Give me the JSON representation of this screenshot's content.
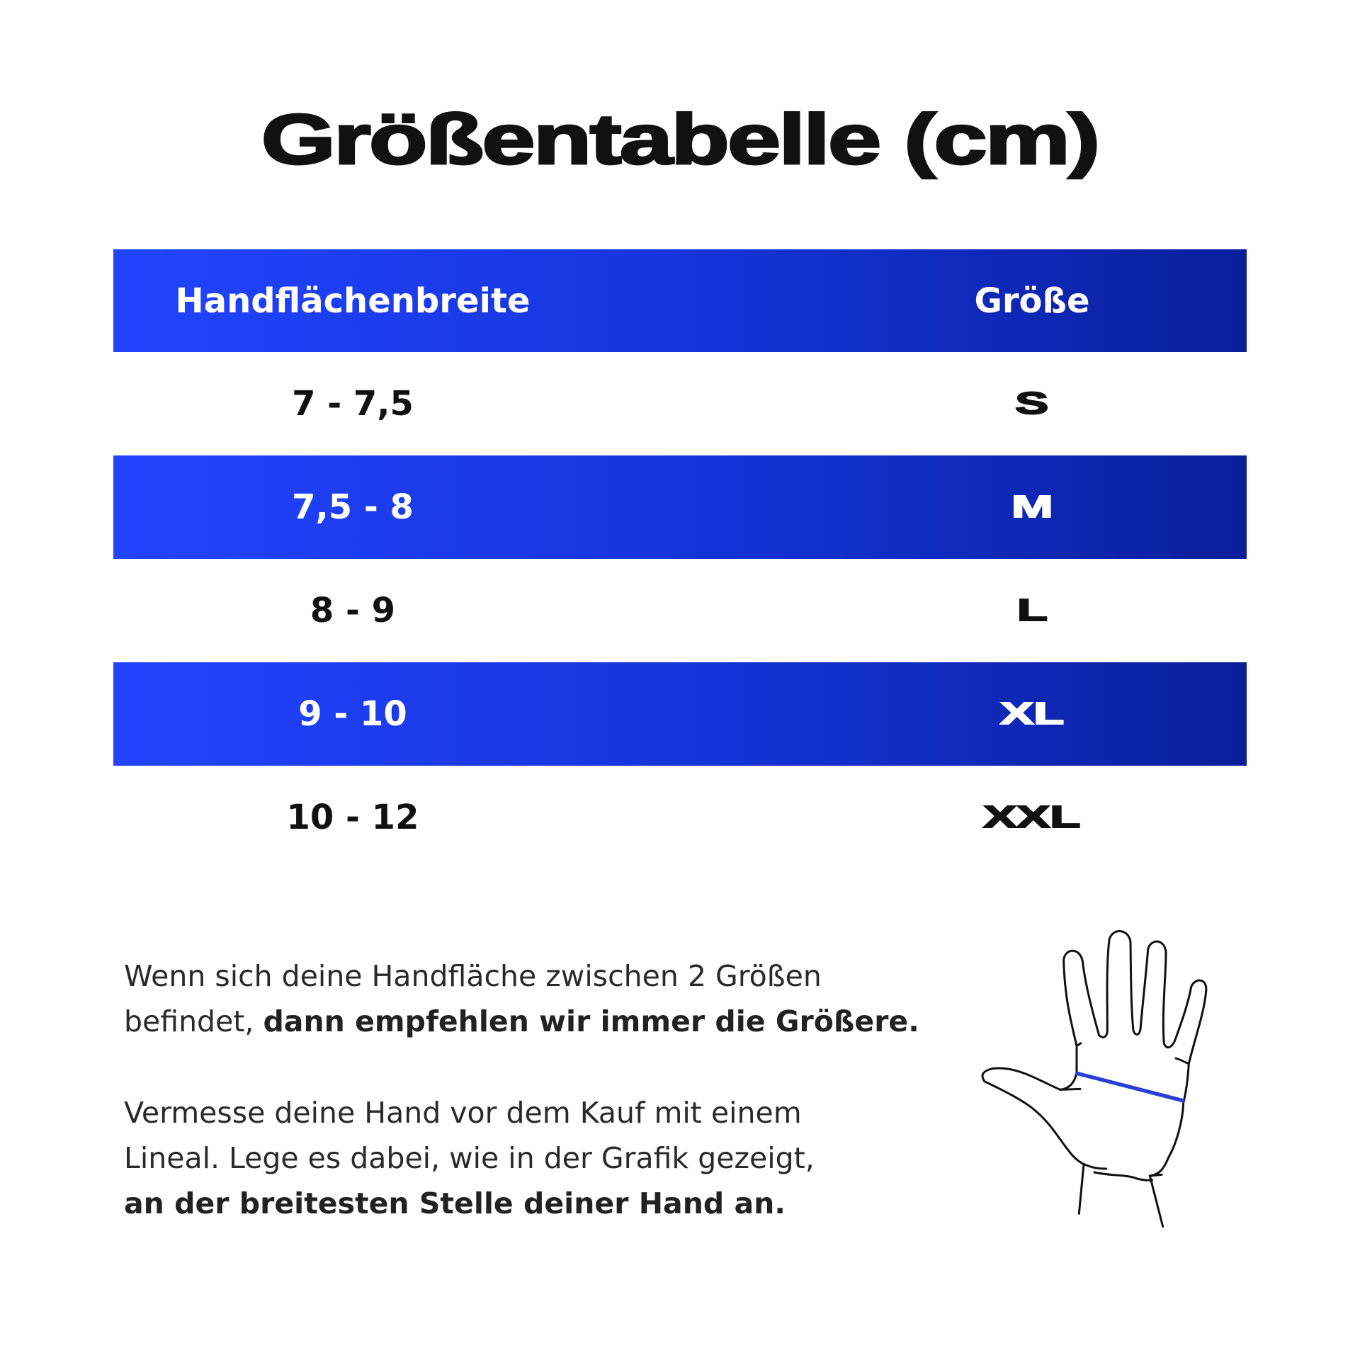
{
  "title": "Größentabelle (cm)",
  "table": {
    "headers": [
      "Handflächenbreite",
      "Größe"
    ],
    "rows": [
      {
        "width": "7 - 7,5",
        "size": "S"
      },
      {
        "width": "7,5 - 8",
        "size": "M"
      },
      {
        "width": "8 - 9",
        "size": "L"
      },
      {
        "width": "9 - 10",
        "size": "XL"
      },
      {
        "width": "10 - 12",
        "size": "XXL"
      }
    ]
  },
  "notes": {
    "p1_regular": "Wenn sich deine Handfläche zwischen 2 Größen befindet, ",
    "p1_bold": "dann empfehlen wir immer die Größere.",
    "p2_regular": "Vermesse deine Hand vor dem Kauf mit einem Lineal. Lege es dabei, wie in der Grafik gezeigt, ",
    "p2_bold": "an der breitesten Stelle deiner Hand an."
  },
  "colors": {
    "accent": "#1a3be8",
    "measure_line": "#2a3fd6"
  },
  "illustration": "hand-measurement-icon"
}
